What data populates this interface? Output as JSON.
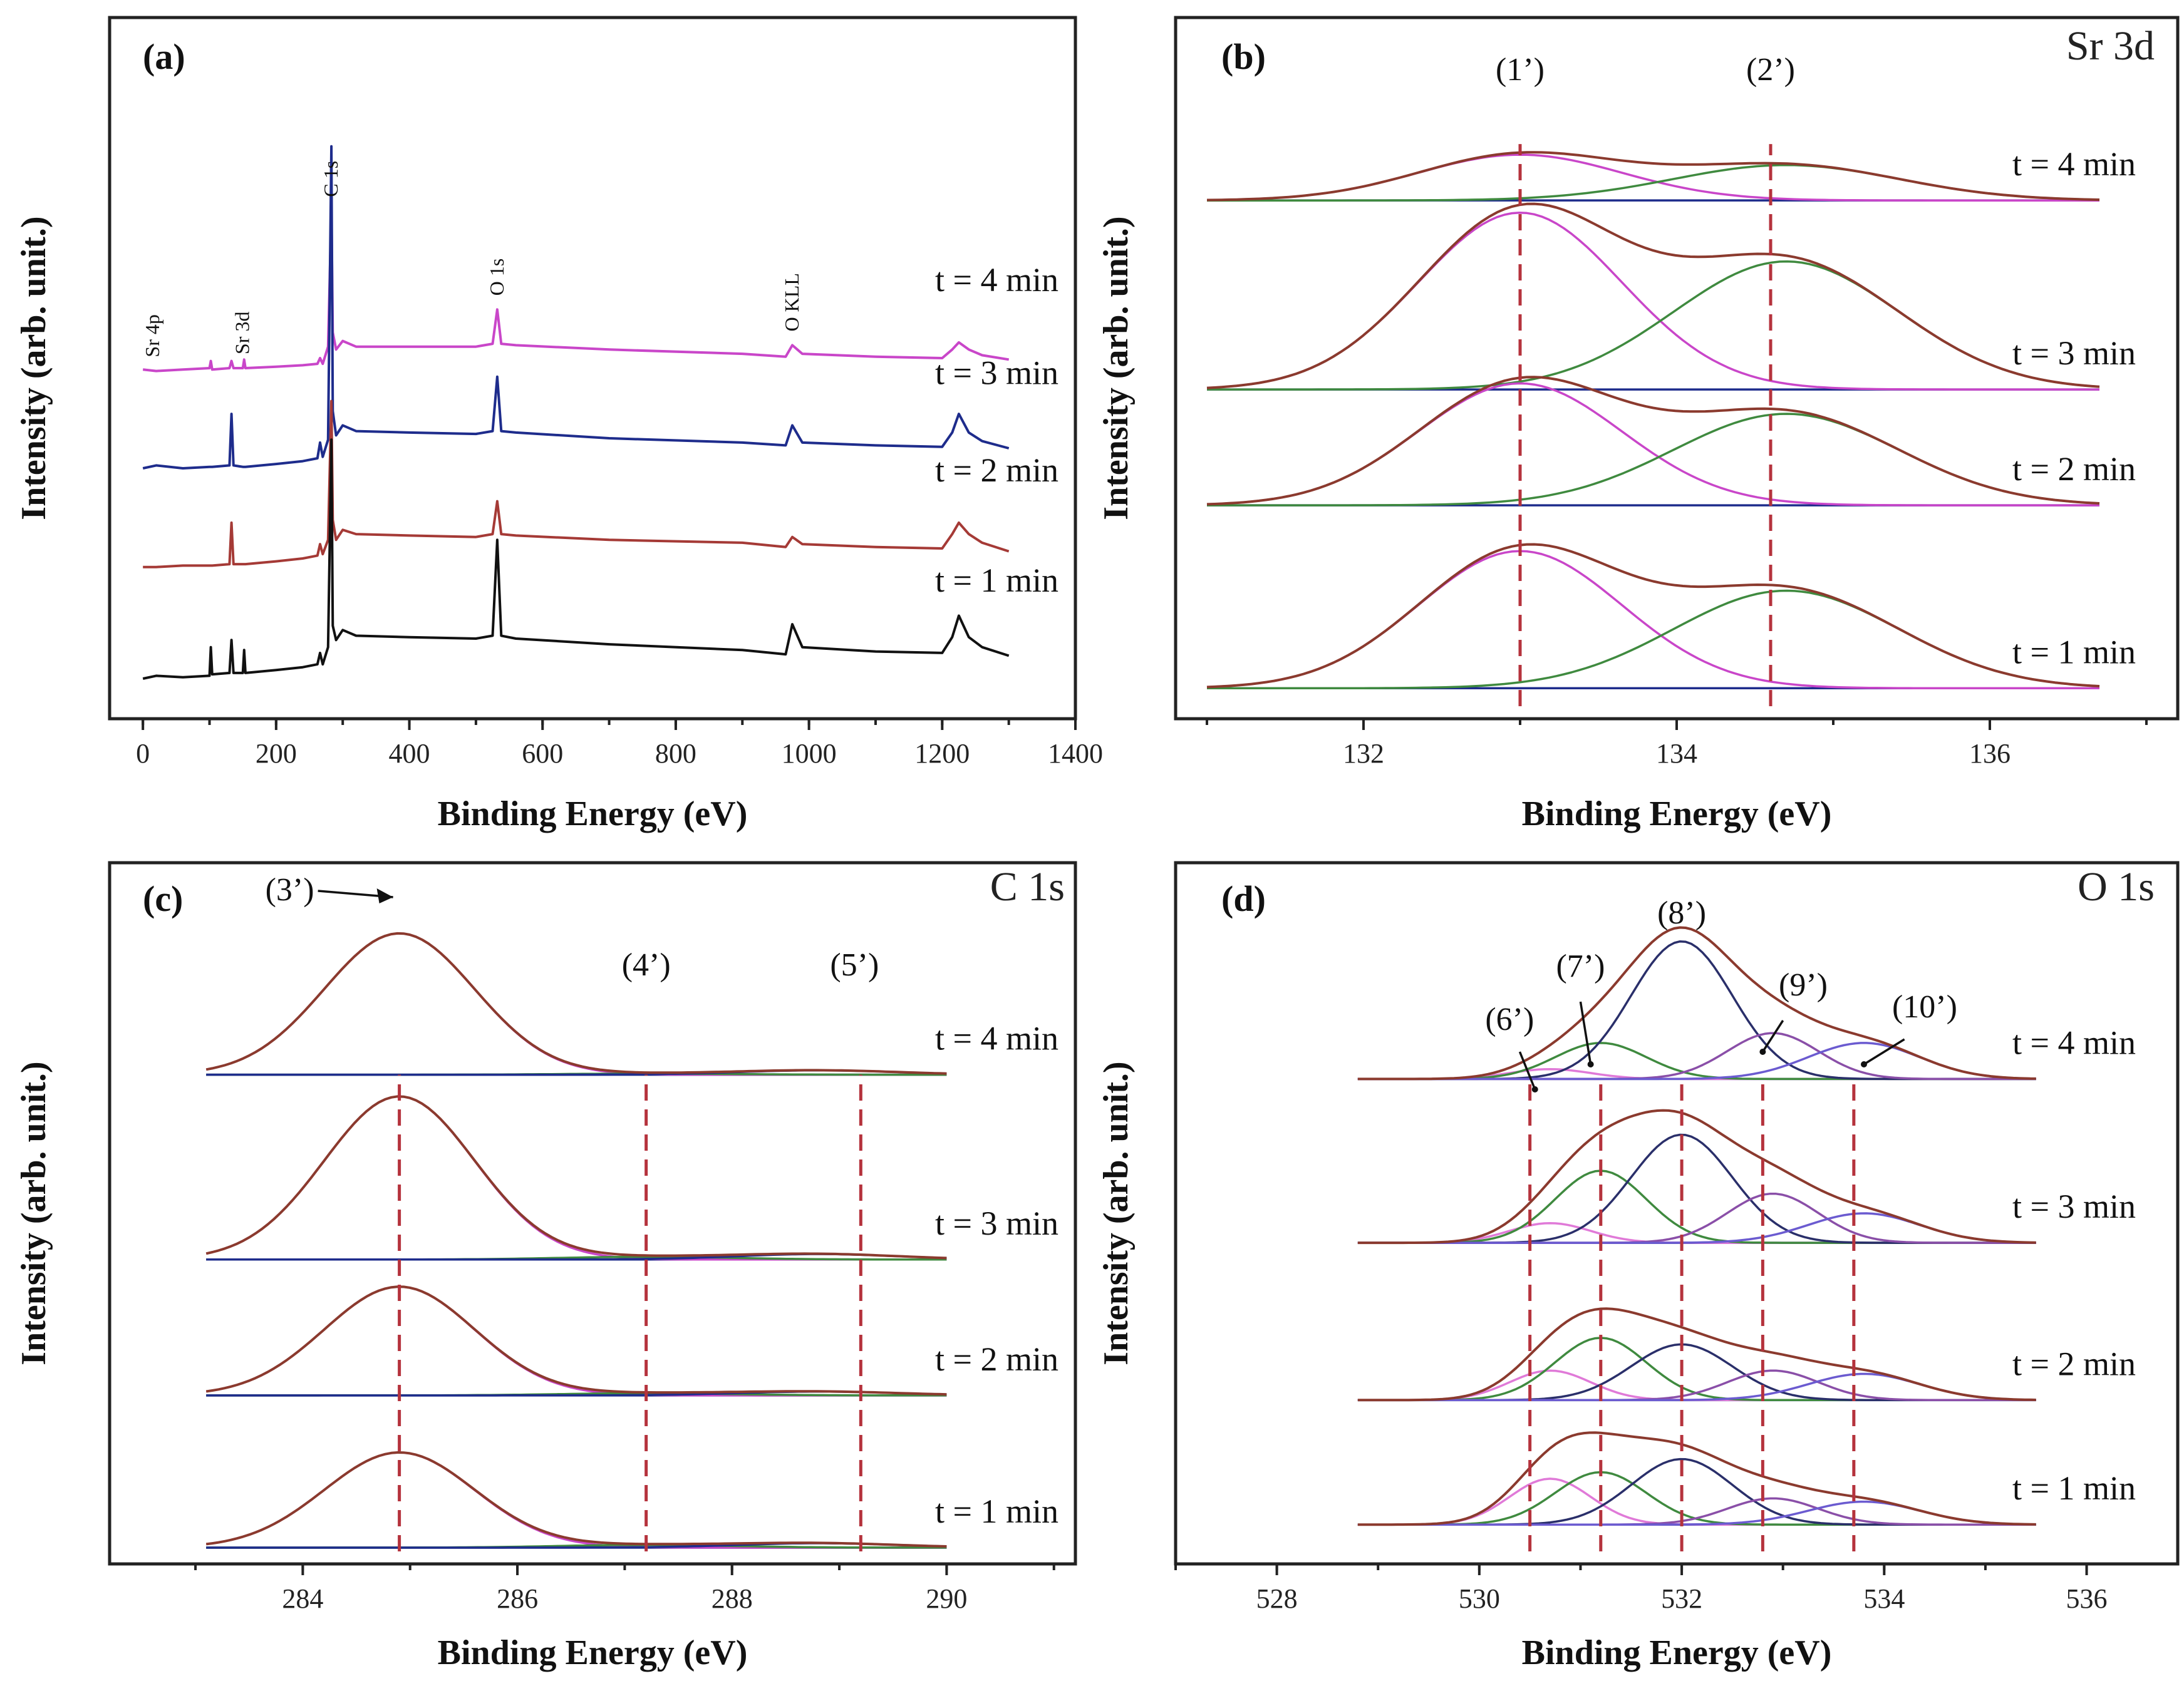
{
  "colors": {
    "frame": "#222222",
    "guide": "#b5333d",
    "magenta": "#c946c9",
    "green": "#3f8a3f",
    "blue": "#1e2c8c",
    "red": "#a53a36",
    "black": "#111111",
    "navy": "#2a2f6a",
    "envelope": "#8b3a2e",
    "lightpink": "#e07ad8"
  },
  "chart_data": [
    {
      "id": "a",
      "type": "line",
      "label": "(a)",
      "xlabel": "Binding Energy (eV)",
      "ylabel": "Intensity (arb. unit.)",
      "xlim": [
        -50,
        1400
      ],
      "xticks": [
        0,
        200,
        400,
        600,
        800,
        1000,
        1200,
        1400
      ],
      "x": [
        0,
        20,
        60,
        100,
        102,
        104,
        130,
        133,
        136,
        150,
        152,
        154,
        200,
        240,
        262,
        266,
        270,
        278,
        283,
        285,
        290,
        300,
        320,
        400,
        500,
        525,
        532,
        538,
        560,
        700,
        900,
        965,
        975,
        990,
        1100,
        1200,
        1215,
        1225,
        1240,
        1260,
        1300
      ],
      "series": [
        {
          "name": "t = 4 min",
          "color": "#c946c9",
          "values": [
            14,
            13,
            14,
            15,
            20,
            14,
            15,
            20,
            15,
            15,
            21,
            15,
            16,
            17,
            18,
            22,
            18,
            30,
            125,
            40,
            28,
            34,
            30,
            30,
            30,
            32,
            56,
            32,
            31,
            28,
            25,
            23,
            31,
            25,
            23,
            22,
            28,
            33,
            28,
            24,
            21
          ]
        },
        {
          "name": "t = 3 min",
          "color": "#1e2c8c",
          "values": [
            10,
            12,
            10,
            11,
            11,
            11,
            12,
            48,
            12,
            11,
            11,
            11,
            13,
            15,
            17,
            28,
            18,
            30,
            235,
            50,
            33,
            40,
            36,
            35,
            34,
            36,
            74,
            36,
            35,
            31,
            28,
            26,
            40,
            28,
            26,
            25,
            35,
            48,
            35,
            29,
            24
          ]
        },
        {
          "name": "t = 2 min",
          "color": "#a53a36",
          "values": [
            9,
            9,
            10,
            10,
            10,
            10,
            11,
            40,
            11,
            11,
            11,
            11,
            13,
            15,
            17,
            25,
            18,
            28,
            125,
            42,
            28,
            35,
            32,
            31,
            30,
            32,
            55,
            32,
            31,
            28,
            26,
            23,
            30,
            25,
            23,
            22,
            32,
            40,
            32,
            26,
            20
          ]
        },
        {
          "name": "t = 1 min",
          "color": "#111111",
          "values": [
            8,
            10,
            9,
            10,
            30,
            11,
            12,
            35,
            12,
            12,
            28,
            12,
            14,
            16,
            18,
            26,
            18,
            30,
            175,
            45,
            35,
            42,
            38,
            37,
            36,
            38,
            105,
            38,
            36,
            32,
            28,
            25,
            46,
            30,
            27,
            26,
            37,
            52,
            37,
            30,
            24
          ]
        }
      ],
      "offsets": [
        210,
        145,
        77,
        0
      ],
      "ylim": [
        -20,
        470
      ],
      "annotations": [
        "Sr 4p",
        "Sr 3d",
        "C 1s",
        "O 1s",
        "O KLL"
      ],
      "annotation_x": [
        15,
        150,
        283,
        532,
        975
      ],
      "time_labels": [
        "t = 4 min",
        "t = 3 min",
        "t = 2 min",
        "t = 1 min"
      ]
    },
    {
      "id": "b",
      "type": "line",
      "label": "(b)",
      "title": "Sr 3d",
      "xlabel": "Binding Energy (eV)",
      "ylabel": "Intensity (arb. unit.)",
      "xlim": [
        130.8,
        137.2
      ],
      "xticks": [
        132,
        134,
        136
      ],
      "xrange": [
        131.0,
        136.7
      ],
      "components": [
        {
          "center": 133.0,
          "width": 0.65,
          "color": "#c946c9"
        },
        {
          "center": 134.7,
          "width": 0.72,
          "color": "#3f8a3f"
        }
      ],
      "series": [
        {
          "name": "t = 4 min",
          "amplitudes": [
            0.75,
            0.58
          ]
        },
        {
          "name": "t = 3 min",
          "amplitudes": [
            2.9,
            2.1
          ]
        },
        {
          "name": "t = 2 min",
          "amplitudes": [
            2.0,
            1.5
          ]
        },
        {
          "name": "t = 1 min",
          "amplitudes": [
            2.25,
            1.6
          ]
        }
      ],
      "offsets": [
        8.0,
        4.9,
        3.0,
        0
      ],
      "ylim": [
        -0.5,
        11.0
      ],
      "guides": [
        133.0,
        134.6
      ],
      "peak_labels": [
        "(1’)",
        "(2’)"
      ],
      "time_labels": [
        "t = 4 min",
        "t = 3 min",
        "t = 2 min",
        "t = 1 min"
      ]
    },
    {
      "id": "c",
      "type": "line",
      "label": "(c)",
      "title": "C 1s",
      "xlabel": "Binding Energy (eV)",
      "ylabel": "Intensity (arb. unit.)",
      "xlim": [
        282.2,
        291.2
      ],
      "xticks": [
        284,
        286,
        288,
        290
      ],
      "xrange": [
        283.1,
        290.0
      ],
      "components": [
        {
          "center": 284.9,
          "width": 0.7,
          "color": "#c946c9"
        },
        {
          "center": 287.2,
          "width": 0.8,
          "color": "#3f8a3f"
        },
        {
          "center": 288.8,
          "width": 0.75,
          "color": "#1e2c8c"
        }
      ],
      "series": [
        {
          "name": "t = 4 min",
          "amplitudes": [
            2.6,
            0.02,
            0.08
          ]
        },
        {
          "name": "t = 3 min",
          "amplitudes": [
            3.0,
            0.05,
            0.1
          ]
        },
        {
          "name": "t = 2 min",
          "amplitudes": [
            2.0,
            0.04,
            0.07
          ]
        },
        {
          "name": "t = 1 min",
          "amplitudes": [
            1.75,
            0.05,
            0.08
          ]
        }
      ],
      "offsets": [
        8.7,
        5.3,
        2.8,
        0
      ],
      "ylim": [
        -0.3,
        12.6
      ],
      "guides": [
        284.9,
        287.2,
        289.2
      ],
      "peak_labels": [
        "(3’)",
        "(4’)",
        "(5’)"
      ],
      "time_labels": [
        "t = 4 min",
        "t = 3 min",
        "t = 2 min",
        "t = 1 min"
      ]
    },
    {
      "id": "d",
      "type": "line",
      "label": "(d)",
      "title": "O 1s",
      "xlabel": "Binding Energy (eV)",
      "ylabel": "Intensity (arb. unit.)",
      "xlim": [
        527.0,
        536.9
      ],
      "xticks": [
        528,
        530,
        532,
        534,
        536
      ],
      "xrange": [
        528.8,
        535.5
      ],
      "components": [
        {
          "center": 530.7,
          "width": 0.4,
          "color": "#e07ad8"
        },
        {
          "center": 531.2,
          "width": 0.45,
          "color": "#3f8a3f"
        },
        {
          "center": 532.0,
          "width": 0.5,
          "color": "#2a2f6a"
        },
        {
          "center": 532.9,
          "width": 0.45,
          "color": "#8a4fa8"
        },
        {
          "center": 533.8,
          "width": 0.55,
          "color": "#6b5bd0"
        }
      ],
      "series": [
        {
          "name": "t = 4 min",
          "amplitudes": [
            0.15,
            0.55,
            2.1,
            0.7,
            0.55
          ]
        },
        {
          "name": "t = 3 min",
          "amplitudes": [
            0.3,
            1.1,
            1.65,
            0.75,
            0.45
          ]
        },
        {
          "name": "t = 2 min",
          "amplitudes": [
            0.45,
            0.95,
            0.85,
            0.45,
            0.4
          ]
        },
        {
          "name": "t = 1 min",
          "amplitudes": [
            0.7,
            0.8,
            1.0,
            0.4,
            0.35
          ]
        }
      ],
      "offsets": [
        6.8,
        4.3,
        1.9,
        0
      ],
      "ylim": [
        -0.6,
        10.1
      ],
      "guides": [
        530.5,
        531.2,
        532.0,
        532.8,
        533.7
      ],
      "peak_labels": [
        "(6’)",
        "(7’)",
        "(8’)",
        "(9’)",
        "(10’)"
      ],
      "time_labels": [
        "t = 4 min",
        "t = 3 min",
        "t = 2 min",
        "t = 1 min"
      ]
    }
  ]
}
